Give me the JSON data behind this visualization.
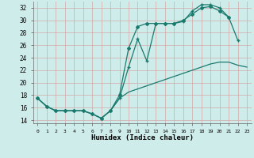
{
  "xlabel": "Humidex (Indice chaleur)",
  "background_color": "#ceecea",
  "grid_color": "#d4a8a8",
  "line_color": "#1a7a6e",
  "xlim": [
    -0.5,
    23.5
  ],
  "ylim": [
    13.5,
    33
  ],
  "yticks": [
    14,
    16,
    18,
    20,
    22,
    24,
    26,
    28,
    30,
    32
  ],
  "xticks": [
    0,
    1,
    2,
    3,
    4,
    5,
    6,
    7,
    8,
    9,
    10,
    11,
    12,
    13,
    14,
    15,
    16,
    17,
    18,
    19,
    20,
    21,
    22,
    23
  ],
  "xtick_labels": [
    "0",
    "1",
    "2",
    "3",
    "4",
    "5",
    "6",
    "7",
    "8",
    "9",
    "10",
    "11",
    "12",
    "13",
    "14",
    "15",
    "16",
    "17",
    "18",
    "19",
    "20",
    "21",
    "22",
    "23"
  ],
  "series": [
    {
      "x": [
        0,
        1,
        2,
        3,
        4,
        5,
        6,
        7,
        8,
        9,
        10,
        11,
        12,
        13,
        14,
        15,
        16,
        17,
        18,
        19,
        20,
        21,
        22,
        23
      ],
      "y": [
        17.5,
        16.2,
        15.5,
        15.5,
        15.5,
        15.5,
        15.0,
        14.3,
        15.5,
        17.5,
        18.5,
        19.0,
        19.5,
        20.0,
        20.5,
        21.0,
        21.5,
        22.0,
        22.5,
        23.0,
        23.3,
        23.3,
        22.8,
        22.5
      ],
      "marker": null
    },
    {
      "x": [
        0,
        1,
        2,
        3,
        4,
        5,
        6,
        7,
        8,
        9,
        10,
        11,
        12,
        13,
        14,
        15,
        16,
        17,
        18,
        19,
        20,
        21,
        22,
        23
      ],
      "y": [
        17.5,
        16.2,
        15.5,
        15.5,
        15.5,
        15.5,
        15.0,
        14.3,
        15.5,
        18.0,
        25.5,
        29.0,
        29.5,
        29.5,
        29.5,
        29.5,
        30.0,
        31.0,
        32.0,
        32.2,
        31.5,
        30.5,
        null,
        null
      ],
      "marker": "D",
      "markersize": 2.0
    },
    {
      "x": [
        0,
        1,
        2,
        3,
        4,
        5,
        6,
        7,
        8,
        9,
        10,
        11,
        12,
        13,
        14,
        15,
        16,
        17,
        18,
        19,
        20,
        21,
        22,
        23
      ],
      "y": [
        17.5,
        16.2,
        15.5,
        15.5,
        15.5,
        15.5,
        15.0,
        14.3,
        15.5,
        17.5,
        22.5,
        27.0,
        23.5,
        29.5,
        29.5,
        29.5,
        29.8,
        31.5,
        32.5,
        32.5,
        32.0,
        30.5,
        26.8,
        null
      ],
      "marker": "+",
      "markersize": 3.5
    }
  ]
}
